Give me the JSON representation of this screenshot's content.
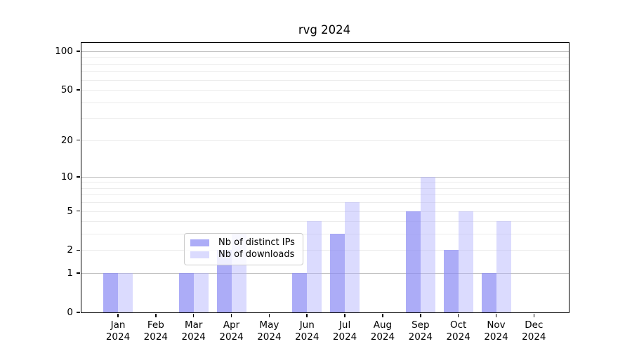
{
  "chart_data": {
    "type": "bar",
    "title": "rvg 2024",
    "categories": [
      "Jan",
      "Feb",
      "Mar",
      "Apr",
      "May",
      "Jun",
      "Jul",
      "Aug",
      "Sep",
      "Oct",
      "Nov",
      "Dec"
    ],
    "x_year": "2024",
    "series": [
      {
        "key": "distinct-ips",
        "name": "Nb of distinct IPs",
        "color": "rgba(140,140,244,0.72)",
        "values": [
          1,
          0,
          1,
          2,
          0,
          1,
          3,
          0,
          5,
          2,
          1,
          0
        ]
      },
      {
        "key": "downloads",
        "name": "Nb of downloads",
        "color": "rgba(175,175,252,0.45)",
        "values": [
          1,
          0,
          1,
          3,
          0,
          4,
          6,
          0,
          10,
          5,
          4,
          0
        ]
      }
    ],
    "y_ticks": [
      0,
      1,
      2,
      5,
      10,
      20,
      50,
      100
    ],
    "major_gridlines": [
      1,
      10,
      100
    ],
    "minor_gridlines": [
      2,
      3,
      4,
      5,
      6,
      7,
      8,
      9,
      20,
      30,
      40,
      50,
      60,
      70,
      80,
      90
    ],
    "scale": "log1p",
    "ylim": [
      0,
      117
    ],
    "xlabel": "",
    "ylabel": "",
    "grid": true,
    "legend_position": "lower-center",
    "colors": {
      "background": "#ffffff",
      "spine": "#000000",
      "grid_major": "#c2c2c2",
      "grid_minor": "#ececec",
      "text": "#000000"
    }
  }
}
